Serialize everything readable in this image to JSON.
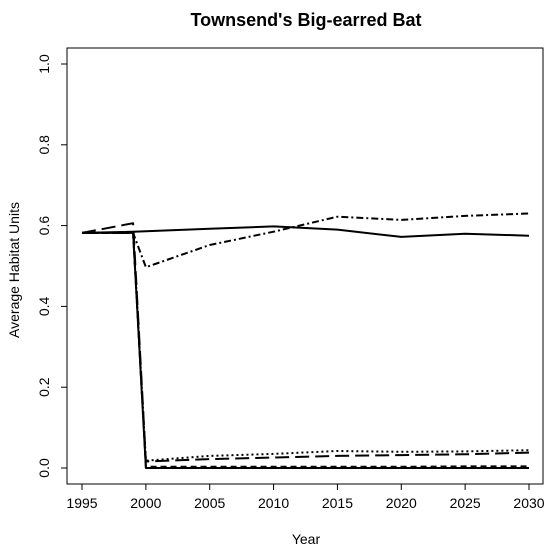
{
  "chart_data": {
    "type": "line",
    "title": "Townsend's Big-earred Bat",
    "xlabel": "Year",
    "ylabel": "Average Habitat Units",
    "xlim": [
      1995,
      2030
    ],
    "ylim": [
      0.0,
      1.0
    ],
    "x_ticks": [
      "1995",
      "2000",
      "2005",
      "2010",
      "2015",
      "2020",
      "2025",
      "2030"
    ],
    "y_ticks": [
      "0.0",
      "0.2",
      "0.4",
      "0.6",
      "0.8",
      "1.0"
    ],
    "legend": "none",
    "grid": false,
    "series": [
      {
        "style": "solid",
        "x": [
          1995,
          1999,
          2000,
          2005,
          2010,
          2015,
          2020,
          2025,
          2030
        ],
        "y": [
          0.582,
          0.585,
          0.586,
          0.592,
          0.598,
          0.59,
          0.572,
          0.58,
          0.575
        ]
      },
      {
        "style": "dotdash",
        "x": [
          1995,
          1999,
          2000,
          2005,
          2010,
          2015,
          2020,
          2025,
          2030
        ],
        "y": [
          0.582,
          0.582,
          0.497,
          0.552,
          0.585,
          0.622,
          0.614,
          0.624,
          0.63
        ]
      },
      {
        "style": "longdash",
        "x": [
          1995,
          1999,
          2000,
          2005,
          2010,
          2015,
          2020,
          2025,
          2030
        ],
        "y": [
          0.582,
          0.606,
          0.016,
          0.022,
          0.026,
          0.03,
          0.032,
          0.034,
          0.038
        ]
      },
      {
        "style": "dotted",
        "x": [
          1995,
          1999,
          2000,
          2005,
          2010,
          2015,
          2020,
          2025,
          2030
        ],
        "y": [
          0.582,
          0.582,
          0.018,
          0.03,
          0.035,
          0.042,
          0.04,
          0.041,
          0.044
        ]
      },
      {
        "style": "solid",
        "x": [
          1995,
          1999,
          2000,
          2005,
          2010,
          2015,
          2020,
          2025,
          2030
        ],
        "y": [
          0.582,
          0.582,
          0.0,
          0.0,
          0.0,
          0.0,
          0.0,
          0.0,
          0.0
        ]
      },
      {
        "style": "dashed",
        "x": [
          1995,
          1999,
          2000,
          2005,
          2010,
          2015,
          2020,
          2025,
          2030
        ],
        "y": [
          0.582,
          0.582,
          0.003,
          0.003,
          0.003,
          0.003,
          0.003,
          0.004,
          0.004
        ]
      }
    ]
  }
}
